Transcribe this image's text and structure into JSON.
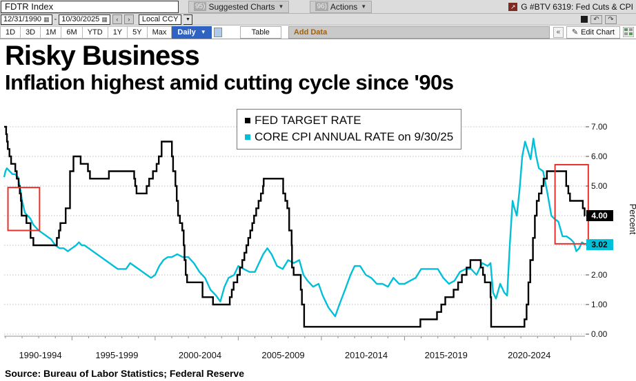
{
  "icons": {
    "calendar": "▦",
    "caret_down": "▼",
    "prev": "‹",
    "next": "›",
    "undo": "↶",
    "redo": "↷",
    "collapse": "«",
    "pencil": "✎",
    "external": "↗"
  },
  "toolbar": {
    "ticker": "FDTR Index",
    "suggested_num": "95)",
    "suggested_label": "Suggested Charts",
    "actions_num": "96)",
    "actions_label": "Actions",
    "chart_ref": "G #BTV 6319: Fed Cuts & CPI",
    "currency": "Local CCY",
    "ranges": [
      "1D",
      "3D",
      "1M",
      "6M",
      "YTD",
      "1Y",
      "5Y",
      "Max"
    ],
    "period": "Daily",
    "table_label": "Table",
    "add_data": "Add Data",
    "edit_chart": "Edit Chart"
  },
  "dates": {
    "from": "12/31/1990",
    "separator": "-",
    "to": "10/30/2025"
  },
  "chart": {
    "title": "Risky Business",
    "subtitle": "Inflation highest amid cutting cycle since '90s",
    "legend": [
      {
        "label": "FED TARGET RATE",
        "color": "#000000"
      },
      {
        "label": "CORE CPI ANNUAL RATE on 9/30/25",
        "color": "#00bfd8"
      }
    ],
    "badges": {
      "fed_value": "4.00",
      "cpi_value": "3.02"
    },
    "y_axis_label": "Percent",
    "source": "Source: Bureau of Labor Statistics; Federal Reserve"
  },
  "chart_data": {
    "type": "line",
    "x_range": [
      1990.92,
      2025.85
    ],
    "ylim": [
      0,
      7
    ],
    "grid": "dotted-horizontal",
    "legend_position": "top-center",
    "y_ticks": [
      "7.00",
      "6.00",
      "5.00",
      "4.00",
      "3.00",
      "2.00",
      "1.00",
      "0.00"
    ],
    "x_labels": [
      {
        "label": "1990-1994",
        "center": 1993.1
      },
      {
        "label": "1995-1999",
        "center": 1997.7
      },
      {
        "label": "2000-2004",
        "center": 2002.7
      },
      {
        "label": "2005-2009",
        "center": 2007.7
      },
      {
        "label": "2010-2014",
        "center": 2012.7
      },
      {
        "label": "2015-2019",
        "center": 2017.5
      },
      {
        "label": "2020-2024",
        "center": 2022.5
      }
    ],
    "highlight_color": "#e8302a",
    "highlights": [
      {
        "x0": 1991.15,
        "x1": 1993.05,
        "y0": 3.5,
        "y1": 4.95
      },
      {
        "x0": 2024.05,
        "x1": 2026.05,
        "y0": 3.05,
        "y1": 5.72
      }
    ],
    "series": [
      {
        "name": "FED TARGET RATE",
        "style": "step",
        "color": "#000000",
        "points": [
          [
            1990.92,
            7.0
          ],
          [
            1991.04,
            6.75
          ],
          [
            1991.09,
            6.5
          ],
          [
            1991.14,
            6.25
          ],
          [
            1991.24,
            6.0
          ],
          [
            1991.34,
            5.75
          ],
          [
            1991.59,
            5.5
          ],
          [
            1991.68,
            5.25
          ],
          [
            1991.79,
            5.0
          ],
          [
            1991.86,
            4.75
          ],
          [
            1991.93,
            4.5
          ],
          [
            1991.97,
            4.0
          ],
          [
            1992.26,
            3.75
          ],
          [
            1992.51,
            3.25
          ],
          [
            1992.68,
            3.0
          ],
          [
            1994.09,
            3.25
          ],
          [
            1994.22,
            3.5
          ],
          [
            1994.3,
            3.75
          ],
          [
            1994.62,
            4.25
          ],
          [
            1994.88,
            5.5
          ],
          [
            1995.09,
            6.0
          ],
          [
            1995.52,
            5.75
          ],
          [
            1995.96,
            5.5
          ],
          [
            1996.08,
            5.25
          ],
          [
            1997.22,
            5.5
          ],
          [
            1998.74,
            5.25
          ],
          [
            1998.8,
            5.0
          ],
          [
            1998.88,
            4.75
          ],
          [
            1999.49,
            5.0
          ],
          [
            1999.64,
            5.25
          ],
          [
            1999.87,
            5.5
          ],
          [
            2000.09,
            5.75
          ],
          [
            2000.22,
            6.0
          ],
          [
            2000.39,
            6.5
          ],
          [
            2001.01,
            6.0
          ],
          [
            2001.08,
            5.5
          ],
          [
            2001.22,
            5.0
          ],
          [
            2001.3,
            4.5
          ],
          [
            2001.38,
            4.0
          ],
          [
            2001.49,
            3.75
          ],
          [
            2001.63,
            3.5
          ],
          [
            2001.72,
            3.0
          ],
          [
            2001.77,
            2.5
          ],
          [
            2001.84,
            2.0
          ],
          [
            2001.92,
            1.75
          ],
          [
            2002.85,
            1.25
          ],
          [
            2003.48,
            1.0
          ],
          [
            2004.49,
            1.25
          ],
          [
            2004.61,
            1.5
          ],
          [
            2004.72,
            1.75
          ],
          [
            2004.94,
            2.0
          ],
          [
            2005.1,
            2.25
          ],
          [
            2005.24,
            2.5
          ],
          [
            2005.37,
            2.75
          ],
          [
            2005.49,
            3.0
          ],
          [
            2005.6,
            3.25
          ],
          [
            2005.72,
            3.5
          ],
          [
            2005.84,
            3.75
          ],
          [
            2005.95,
            4.0
          ],
          [
            2006.08,
            4.25
          ],
          [
            2006.22,
            4.5
          ],
          [
            2006.36,
            4.75
          ],
          [
            2006.49,
            5.0
          ],
          [
            2006.53,
            5.25
          ],
          [
            2007.7,
            4.75
          ],
          [
            2007.83,
            4.5
          ],
          [
            2007.95,
            4.25
          ],
          [
            2008.06,
            3.5
          ],
          [
            2008.21,
            3.0
          ],
          [
            2008.23,
            2.25
          ],
          [
            2008.33,
            2.0
          ],
          [
            2008.76,
            1.5
          ],
          [
            2008.83,
            1.0
          ],
          [
            2008.96,
            0.25
          ],
          [
            2015.95,
            0.5
          ],
          [
            2016.95,
            0.75
          ],
          [
            2017.21,
            1.0
          ],
          [
            2017.45,
            1.25
          ],
          [
            2017.95,
            1.5
          ],
          [
            2018.22,
            1.75
          ],
          [
            2018.45,
            2.0
          ],
          [
            2018.73,
            2.25
          ],
          [
            2018.96,
            2.5
          ],
          [
            2019.58,
            2.25
          ],
          [
            2019.72,
            2.0
          ],
          [
            2019.83,
            1.75
          ],
          [
            2020.17,
            1.25
          ],
          [
            2020.21,
            0.25
          ],
          [
            2022.21,
            0.5
          ],
          [
            2022.34,
            1.0
          ],
          [
            2022.45,
            1.75
          ],
          [
            2022.56,
            2.5
          ],
          [
            2022.72,
            3.25
          ],
          [
            2022.84,
            4.0
          ],
          [
            2022.95,
            4.5
          ],
          [
            2023.08,
            4.75
          ],
          [
            2023.24,
            5.0
          ],
          [
            2023.36,
            5.25
          ],
          [
            2023.56,
            5.5
          ],
          [
            2024.72,
            5.0
          ],
          [
            2024.85,
            4.75
          ],
          [
            2024.95,
            4.5
          ],
          [
            2025.72,
            4.25
          ],
          [
            2025.83,
            4.0
          ]
        ]
      },
      {
        "name": "CORE CPI ANNUAL RATE on 9/30/25",
        "style": "line",
        "color": "#00bfd8",
        "points": [
          [
            1990.92,
            5.3
          ],
          [
            1991.0,
            5.5
          ],
          [
            1991.08,
            5.6
          ],
          [
            1991.25,
            5.5
          ],
          [
            1991.42,
            5.4
          ],
          [
            1991.58,
            5.4
          ],
          [
            1991.75,
            5.3
          ],
          [
            1991.92,
            4.8
          ],
          [
            1992.0,
            4.5
          ],
          [
            1992.17,
            4.1
          ],
          [
            1992.33,
            4.0
          ],
          [
            1992.5,
            3.9
          ],
          [
            1992.67,
            3.7
          ],
          [
            1992.83,
            3.6
          ],
          [
            1993.0,
            3.5
          ],
          [
            1993.25,
            3.4
          ],
          [
            1993.5,
            3.3
          ],
          [
            1993.75,
            3.2
          ],
          [
            1994.0,
            3.0
          ],
          [
            1994.25,
            2.9
          ],
          [
            1994.5,
            2.9
          ],
          [
            1994.75,
            2.8
          ],
          [
            1995.0,
            2.9
          ],
          [
            1995.25,
            3.0
          ],
          [
            1995.42,
            3.1
          ],
          [
            1995.58,
            3.0
          ],
          [
            1995.75,
            3.0
          ],
          [
            1996.0,
            2.9
          ],
          [
            1996.25,
            2.8
          ],
          [
            1996.5,
            2.7
          ],
          [
            1996.75,
            2.6
          ],
          [
            1997.0,
            2.5
          ],
          [
            1997.25,
            2.4
          ],
          [
            1997.5,
            2.3
          ],
          [
            1997.75,
            2.2
          ],
          [
            1998.0,
            2.2
          ],
          [
            1998.25,
            2.2
          ],
          [
            1998.5,
            2.4
          ],
          [
            1998.75,
            2.3
          ],
          [
            1999.0,
            2.2
          ],
          [
            1999.25,
            2.1
          ],
          [
            1999.5,
            2.0
          ],
          [
            1999.75,
            1.9
          ],
          [
            2000.0,
            2.0
          ],
          [
            2000.25,
            2.3
          ],
          [
            2000.5,
            2.5
          ],
          [
            2000.75,
            2.6
          ],
          [
            2001.0,
            2.6
          ],
          [
            2001.33,
            2.7
          ],
          [
            2001.67,
            2.6
          ],
          [
            2002.0,
            2.6
          ],
          [
            2002.33,
            2.4
          ],
          [
            2002.67,
            2.1
          ],
          [
            2003.0,
            1.9
          ],
          [
            2003.33,
            1.5
          ],
          [
            2003.67,
            1.3
          ],
          [
            2003.92,
            1.1
          ],
          [
            2004.17,
            1.6
          ],
          [
            2004.42,
            1.9
          ],
          [
            2004.75,
            2.0
          ],
          [
            2005.0,
            2.3
          ],
          [
            2005.33,
            2.2
          ],
          [
            2005.67,
            2.1
          ],
          [
            2006.0,
            2.1
          ],
          [
            2006.25,
            2.4
          ],
          [
            2006.5,
            2.7
          ],
          [
            2006.75,
            2.9
          ],
          [
            2007.0,
            2.7
          ],
          [
            2007.33,
            2.3
          ],
          [
            2007.67,
            2.2
          ],
          [
            2008.0,
            2.5
          ],
          [
            2008.33,
            2.4
          ],
          [
            2008.67,
            2.5
          ],
          [
            2008.92,
            2.0
          ],
          [
            2009.17,
            1.8
          ],
          [
            2009.5,
            1.6
          ],
          [
            2009.83,
            1.7
          ],
          [
            2010.08,
            1.3
          ],
          [
            2010.42,
            0.9
          ],
          [
            2010.83,
            0.6
          ],
          [
            2011.08,
            1.0
          ],
          [
            2011.42,
            1.5
          ],
          [
            2011.75,
            2.0
          ],
          [
            2012.0,
            2.3
          ],
          [
            2012.33,
            2.3
          ],
          [
            2012.67,
            2.0
          ],
          [
            2013.0,
            1.9
          ],
          [
            2013.33,
            1.7
          ],
          [
            2013.67,
            1.7
          ],
          [
            2014.0,
            1.6
          ],
          [
            2014.33,
            1.9
          ],
          [
            2014.67,
            1.7
          ],
          [
            2015.0,
            1.7
          ],
          [
            2015.33,
            1.8
          ],
          [
            2015.67,
            1.9
          ],
          [
            2016.0,
            2.2
          ],
          [
            2016.33,
            2.2
          ],
          [
            2016.67,
            2.2
          ],
          [
            2017.0,
            2.2
          ],
          [
            2017.33,
            1.9
          ],
          [
            2017.67,
            1.7
          ],
          [
            2018.0,
            1.8
          ],
          [
            2018.33,
            2.1
          ],
          [
            2018.67,
            2.2
          ],
          [
            2019.0,
            2.2
          ],
          [
            2019.33,
            2.0
          ],
          [
            2019.67,
            2.4
          ],
          [
            2020.0,
            2.3
          ],
          [
            2020.17,
            2.4
          ],
          [
            2020.33,
            1.4
          ],
          [
            2020.5,
            1.2
          ],
          [
            2020.75,
            1.7
          ],
          [
            2021.0,
            1.4
          ],
          [
            2021.17,
            1.3
          ],
          [
            2021.33,
            3.0
          ],
          [
            2021.5,
            4.5
          ],
          [
            2021.58,
            4.3
          ],
          [
            2021.75,
            4.0
          ],
          [
            2021.92,
            4.9
          ],
          [
            2022.08,
            6.0
          ],
          [
            2022.25,
            6.5
          ],
          [
            2022.42,
            6.2
          ],
          [
            2022.58,
            5.9
          ],
          [
            2022.75,
            6.6
          ],
          [
            2022.92,
            6.0
          ],
          [
            2023.08,
            5.6
          ],
          [
            2023.33,
            5.5
          ],
          [
            2023.58,
            4.8
          ],
          [
            2023.83,
            4.0
          ],
          [
            2024.0,
            3.9
          ],
          [
            2024.25,
            3.8
          ],
          [
            2024.5,
            3.3
          ],
          [
            2024.75,
            3.3
          ],
          [
            2025.0,
            3.2
          ],
          [
            2025.17,
            3.1
          ],
          [
            2025.33,
            2.8
          ],
          [
            2025.5,
            2.9
          ],
          [
            2025.67,
            3.1
          ],
          [
            2025.85,
            3.02
          ]
        ]
      }
    ]
  }
}
